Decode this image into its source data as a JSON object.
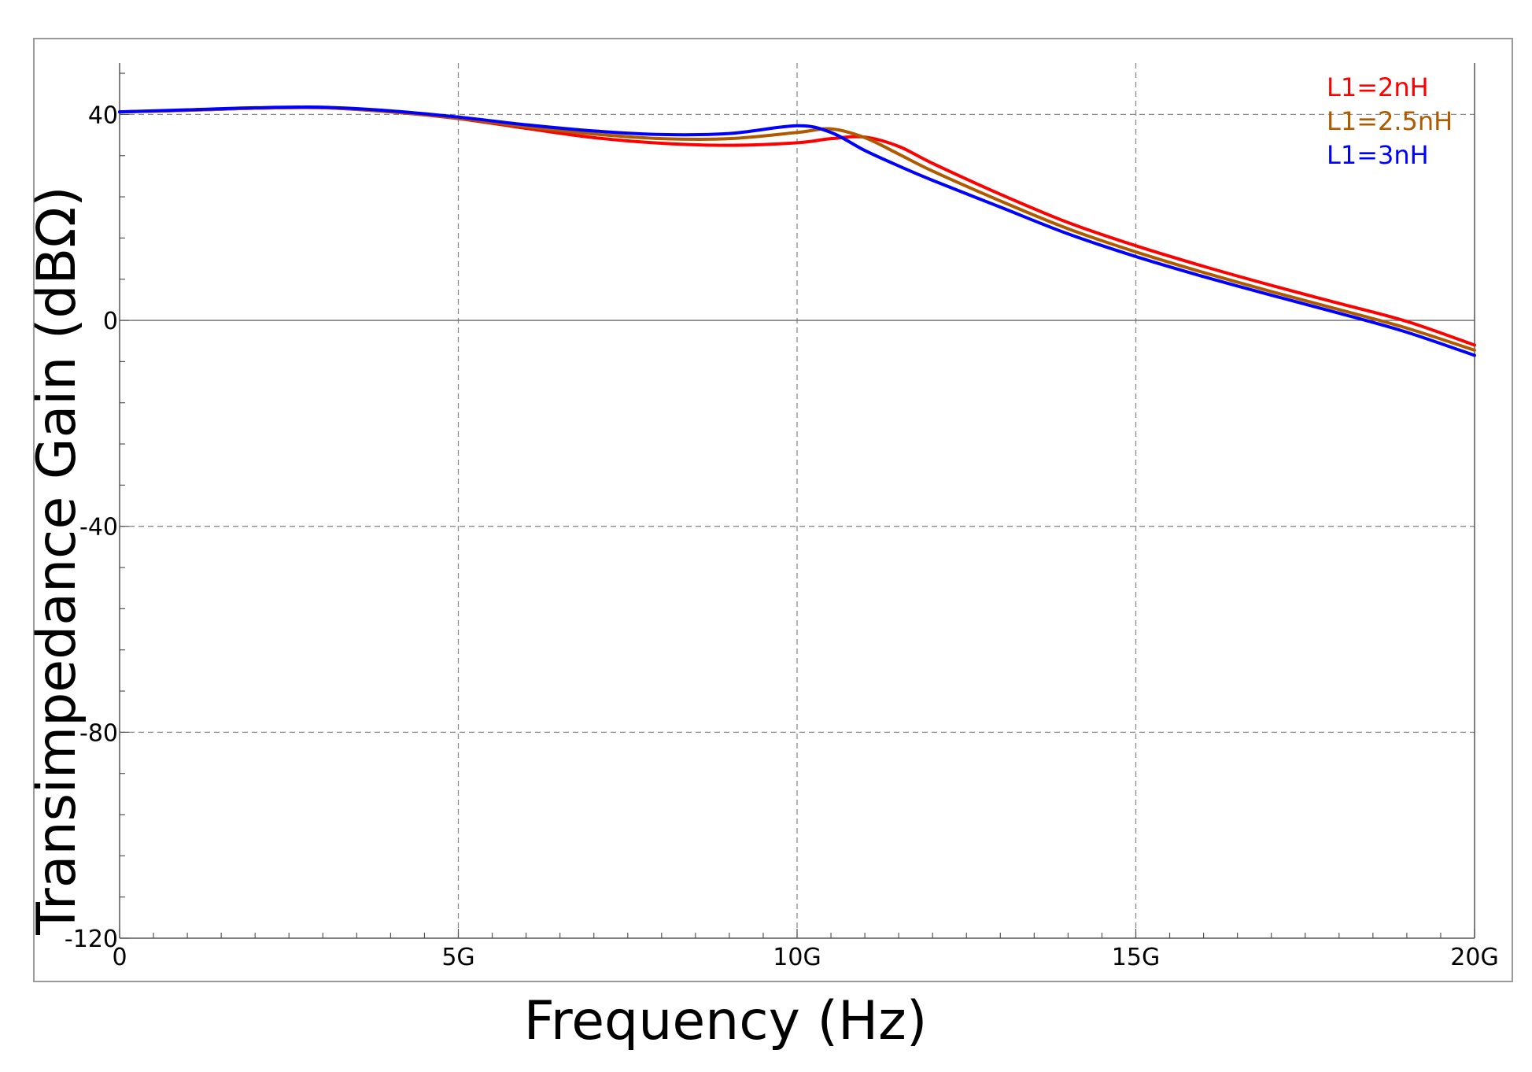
{
  "chart_data": {
    "type": "line",
    "title": "",
    "xlabel": "Frequency (Hz)",
    "ylabel": "Transimpedance Gain (dBΩ)",
    "xlim": [
      0,
      20000000000
    ],
    "ylim": [
      -120,
      50
    ],
    "x_ticks": [
      {
        "value": 0,
        "label": "0"
      },
      {
        "value": 5000000000,
        "label": "5G"
      },
      {
        "value": 10000000000,
        "label": "10G"
      },
      {
        "value": 15000000000,
        "label": "15G"
      },
      {
        "value": 20000000000,
        "label": "20G"
      }
    ],
    "y_ticks": [
      {
        "value": 40,
        "label": "40"
      },
      {
        "value": 0,
        "label": "0"
      },
      {
        "value": -40,
        "label": "-40"
      },
      {
        "value": -80,
        "label": "-80"
      },
      {
        "value": -120,
        "label": "-120"
      }
    ],
    "grid": true,
    "legend_position": "top-right",
    "x": [
      0,
      1000000000,
      2000000000,
      3000000000,
      4000000000,
      5000000000,
      6000000000,
      7000000000,
      8000000000,
      9000000000,
      10000000000,
      10500000000,
      11000000000,
      11500000000,
      12000000000,
      13000000000,
      14000000000,
      15000000000,
      16000000000,
      17000000000,
      18000000000,
      19000000000,
      20000000000
    ],
    "series": [
      {
        "name": "L1=2nH",
        "color": "#ff0000",
        "values": [
          40.5,
          40.8,
          41.2,
          41.3,
          40.5,
          39.2,
          37.3,
          35.5,
          34.4,
          34.0,
          34.5,
          35.3,
          35.6,
          33.8,
          30.5,
          24.5,
          19.0,
          14.5,
          10.5,
          6.8,
          3.3,
          -0.2,
          -4.8
        ]
      },
      {
        "name": "L1=2.5nH",
        "color": "#b05a00",
        "values": [
          40.5,
          40.8,
          41.2,
          41.3,
          40.5,
          39.3,
          37.6,
          36.2,
          35.3,
          35.3,
          36.5,
          37.2,
          35.5,
          32.3,
          29.0,
          23.2,
          17.8,
          13.3,
          9.3,
          5.6,
          2.1,
          -1.5,
          -5.8
        ]
      },
      {
        "name": "L1=3nH",
        "color": "#0000ff",
        "values": [
          40.5,
          40.9,
          41.3,
          41.4,
          40.7,
          39.5,
          38.0,
          36.8,
          36.1,
          36.3,
          37.8,
          36.5,
          33.0,
          30.0,
          27.2,
          22.0,
          16.8,
          12.4,
          8.5,
          4.9,
          1.4,
          -2.3,
          -6.8
        ]
      }
    ]
  }
}
